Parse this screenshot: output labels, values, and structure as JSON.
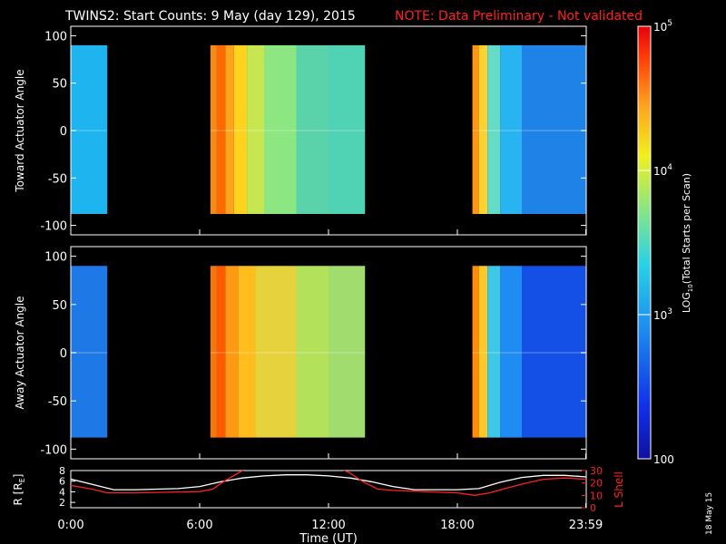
{
  "title": "TWINS2: Start Counts:  9 May (day 129), 2015",
  "note": "NOTE: Data Preliminary - Not validated",
  "date_stamp": "18 May 15",
  "colorbar": {
    "label_parts": [
      "LOG",
      "10",
      "(Total Starts per Scan)"
    ],
    "ticks": [
      {
        "main": "10",
        "exp": "5",
        "value": 100000
      },
      {
        "main": "10",
        "exp": "4",
        "value": 10000
      },
      {
        "main": "10",
        "exp": "3",
        "value": 1000
      },
      {
        "main": "100",
        "exp": "",
        "value": 100
      }
    ]
  },
  "chart_data": [
    {
      "type": "heatmap",
      "name": "toward",
      "ylabel": "Toward Actuator Angle",
      "ylim": [
        -110,
        110
      ],
      "yticks": [
        "100",
        "50",
        "0",
        "-50",
        "-100"
      ],
      "ytick_values": [
        100,
        50,
        0,
        -50,
        -100
      ],
      "xlim_hours": [
        0,
        24
      ],
      "data_range": [
        -88,
        90
      ],
      "coverage_hours": [
        [
          0.0,
          1.7
        ],
        [
          6.5,
          13.7
        ],
        [
          18.7,
          24.0
        ]
      ],
      "column_colors": [
        {
          "from": 0.0,
          "to": 1.7,
          "color": "#1eb4f0"
        },
        {
          "from": 6.5,
          "to": 6.8,
          "color": "#f08c1e"
        },
        {
          "from": 6.8,
          "to": 7.2,
          "color": "#ff6a00"
        },
        {
          "from": 7.2,
          "to": 7.6,
          "color": "#ffa41e"
        },
        {
          "from": 7.6,
          "to": 8.2,
          "color": "#ffd21e"
        },
        {
          "from": 8.2,
          "to": 9.0,
          "color": "#c8e650"
        },
        {
          "from": 9.0,
          "to": 10.5,
          "color": "#8ce682"
        },
        {
          "from": 10.5,
          "to": 12.0,
          "color": "#5ad2aa"
        },
        {
          "from": 12.0,
          "to": 13.7,
          "color": "#50d2b4"
        },
        {
          "from": 18.7,
          "to": 19.0,
          "color": "#ff9614"
        },
        {
          "from": 19.0,
          "to": 19.4,
          "color": "#ffd232"
        },
        {
          "from": 19.4,
          "to": 20.0,
          "color": "#64dcc8"
        },
        {
          "from": 20.0,
          "to": 21.0,
          "color": "#28b4f0"
        },
        {
          "from": 21.0,
          "to": 24.0,
          "color": "#1e82e6"
        }
      ]
    },
    {
      "type": "heatmap",
      "name": "away",
      "ylabel": "Away Actuator Angle",
      "ylim": [
        -110,
        110
      ],
      "yticks": [
        "100",
        "50",
        "0",
        "-50",
        "-100"
      ],
      "ytick_values": [
        100,
        50,
        0,
        -50,
        -100
      ],
      "xlim_hours": [
        0,
        24
      ],
      "data_range": [
        -88,
        90
      ],
      "coverage_hours": [
        [
          0.0,
          1.7
        ],
        [
          6.5,
          13.7
        ],
        [
          18.7,
          24.0
        ]
      ],
      "column_colors": [
        {
          "from": 0.0,
          "to": 1.7,
          "color": "#1e78e6"
        },
        {
          "from": 6.5,
          "to": 6.8,
          "color": "#f07814"
        },
        {
          "from": 6.8,
          "to": 7.2,
          "color": "#ff5a00"
        },
        {
          "from": 7.2,
          "to": 7.8,
          "color": "#ff9a14"
        },
        {
          "from": 7.8,
          "to": 8.6,
          "color": "#ffbe1e"
        },
        {
          "from": 8.6,
          "to": 10.5,
          "color": "#e6d23c"
        },
        {
          "from": 10.5,
          "to": 12.0,
          "color": "#b4e15a"
        },
        {
          "from": 12.0,
          "to": 13.7,
          "color": "#a0dc6e"
        },
        {
          "from": 18.7,
          "to": 19.0,
          "color": "#ff8c0a"
        },
        {
          "from": 19.0,
          "to": 19.4,
          "color": "#ffc828"
        },
        {
          "from": 19.4,
          "to": 20.0,
          "color": "#3cc8e6"
        },
        {
          "from": 20.0,
          "to": 21.0,
          "color": "#1e8cf0"
        },
        {
          "from": 21.0,
          "to": 24.0,
          "color": "#1450e6"
        }
      ]
    },
    {
      "type": "line",
      "name": "orbit",
      "ylabel_left": "R [R",
      "ylabel_left_sub": "E",
      "ylabel_left_end": "]",
      "ylabel_right": "L Shell",
      "left_ylim": [
        1,
        8
      ],
      "left_yticks": [
        "8",
        "6",
        "4",
        "2"
      ],
      "left_ytick_values": [
        8,
        6,
        4,
        2
      ],
      "right_ylim": [
        0,
        30
      ],
      "right_yticks": [
        "30",
        "20",
        "10",
        "0"
      ],
      "right_ytick_values": [
        30,
        20,
        10,
        0
      ],
      "xlabel": "Time (UT)",
      "xticks": [
        "0:00",
        "6:00",
        "12:00",
        "18:00",
        "23:59"
      ],
      "xtick_values": [
        0,
        6,
        12,
        18,
        23.98
      ],
      "series": [
        {
          "axis": "left",
          "color": "#ffffff",
          "x": [
            0,
            1.0,
            2.0,
            3.0,
            4.0,
            5.0,
            6.0,
            7.0,
            8.0,
            9.0,
            10.0,
            11.0,
            12.0,
            13.0,
            14.0,
            15.0,
            16.0,
            17.0,
            18.0,
            19.0,
            20.0,
            21.0,
            22.0,
            23.0,
            24.0
          ],
          "y": [
            6.4,
            5.4,
            4.4,
            4.4,
            4.5,
            4.6,
            5.0,
            5.9,
            6.6,
            7.0,
            7.2,
            7.2,
            7.0,
            6.6,
            5.9,
            5.0,
            4.4,
            4.4,
            4.4,
            4.6,
            5.8,
            6.7,
            7.1,
            7.1,
            6.8
          ]
        },
        {
          "axis": "right",
          "color": "#ff2020",
          "x": [
            0,
            1.0,
            1.7,
            3.0,
            4.5,
            6.0,
            6.6,
            7.2,
            8.0,
            8.1
          ],
          "y": [
            18,
            15,
            12,
            12,
            12.5,
            13,
            15,
            22,
            30,
            31
          ]
        },
        {
          "axis": "right",
          "color": "#ff2020",
          "x": [
            12.6,
            13.0,
            13.6,
            14.3,
            15.0,
            16.5,
            18.0,
            18.8,
            19.5,
            20.0,
            21.0,
            22.0,
            23.0,
            24.0
          ],
          "y": [
            31,
            28,
            21,
            15,
            14,
            13,
            12,
            10,
            12,
            14.5,
            19,
            23,
            24,
            23
          ]
        }
      ]
    }
  ]
}
